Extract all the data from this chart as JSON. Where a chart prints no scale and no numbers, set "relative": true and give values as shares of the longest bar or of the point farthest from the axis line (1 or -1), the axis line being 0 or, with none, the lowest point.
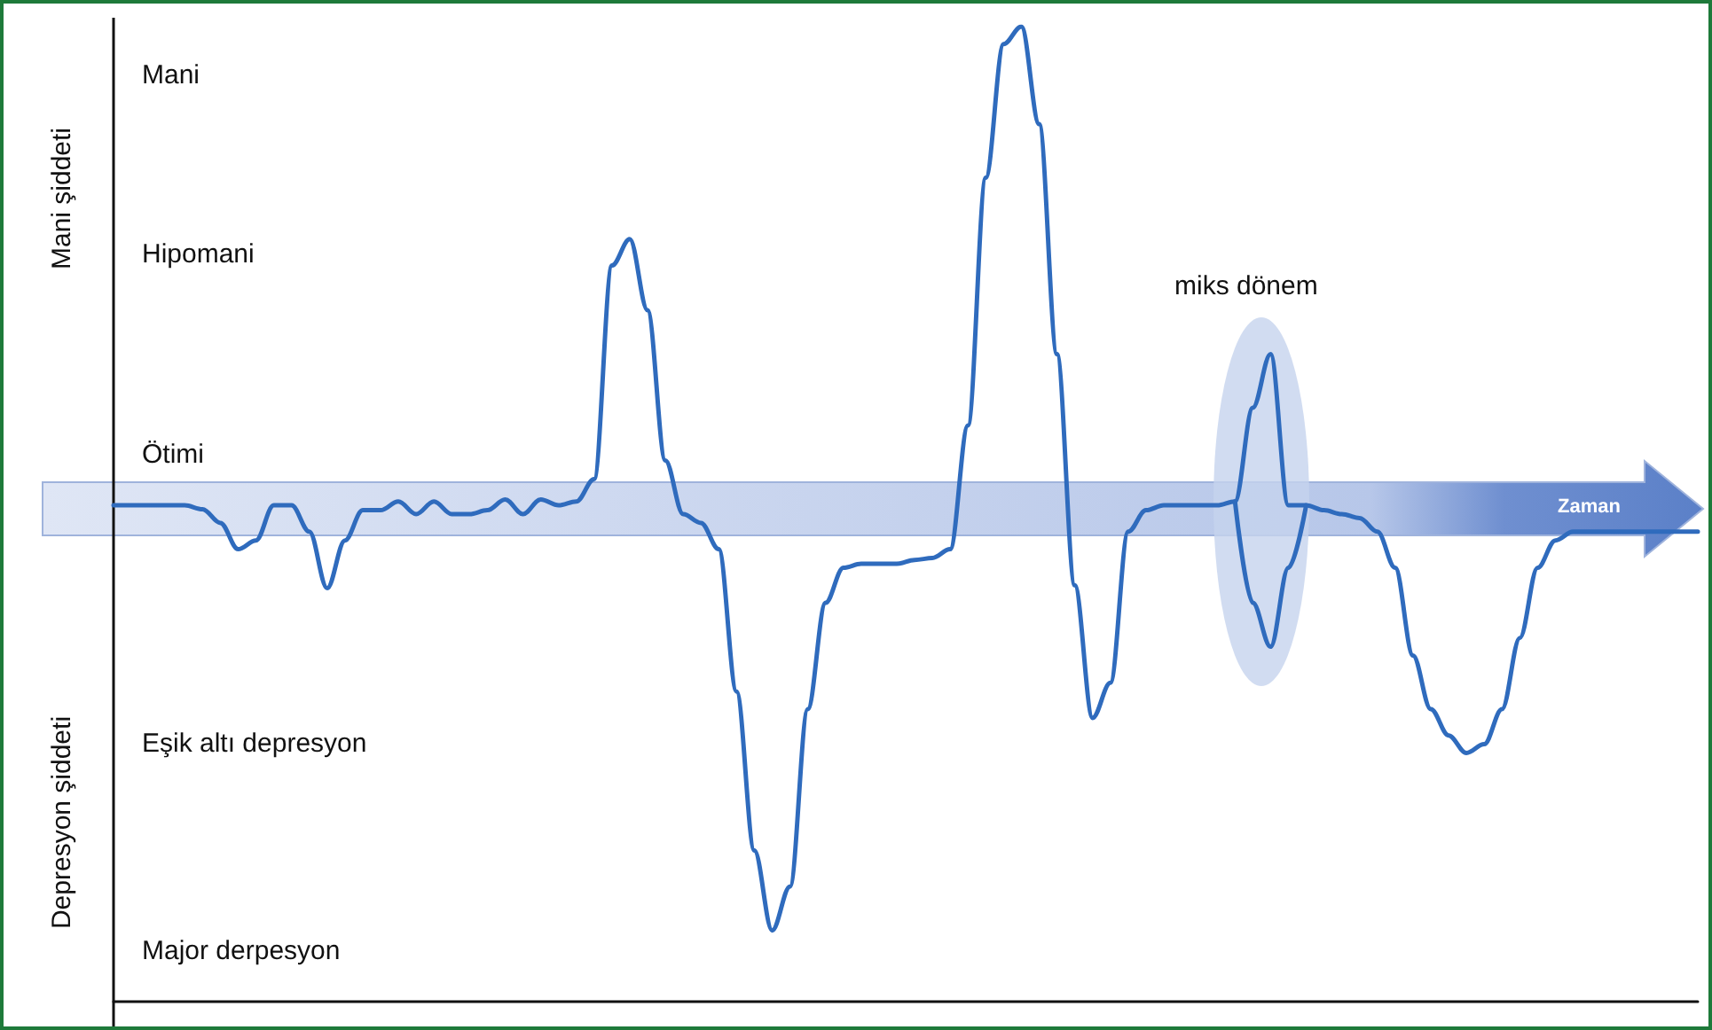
{
  "chart_data": {
    "type": "line",
    "relative": true,
    "marker": "none",
    "line_style": "solid",
    "ylabel": "Mani şiddeti",
    "annotations": [
      "Mani",
      "Hipomani",
      "Ötimi",
      "Eşik altı depresyon",
      "Major derpesyon",
      "Depresyon şiddeti",
      "miks dönem",
      "Zaman"
    ],
    "categories": [
      null,
      null,
      null,
      null,
      null,
      null,
      null,
      null,
      null,
      null,
      null,
      null,
      null,
      null,
      null,
      null,
      null,
      null,
      null,
      null,
      null,
      null,
      null,
      null,
      null,
      null,
      null,
      null,
      null,
      null,
      null,
      null,
      null,
      null,
      null,
      null,
      null,
      null,
      null,
      null,
      null,
      null,
      null,
      null,
      null,
      null,
      null,
      null,
      null,
      null,
      null,
      null,
      null,
      null,
      null,
      null,
      null,
      null,
      null,
      null,
      null,
      null,
      null,
      null,
      null,
      null,
      null,
      null,
      null,
      null,
      null,
      null,
      null,
      null,
      null,
      null,
      null,
      null,
      null,
      null,
      null,
      null,
      null,
      null,
      null,
      null,
      null,
      null,
      null,
      null
    ],
    "series": [
      {
        "color": "#2f6bbd",
        "values": [
          0.509,
          0.509,
          0.509,
          0.509,
          0.509,
          0.505,
          0.491,
          0.464,
          0.473,
          0.509,
          0.509,
          0.482,
          0.424,
          0.473,
          0.504,
          0.504,
          0.513,
          0.5,
          0.513,
          0.5,
          0.5,
          0.504,
          0.515,
          0.5,
          0.515,
          0.509,
          0.513,
          0.536,
          0.755,
          0.782,
          0.709,
          0.555,
          0.5,
          0.491,
          0.464,
          0.318,
          0.155,
          0.073,
          0.118,
          0.3,
          0.409,
          0.445,
          0.449,
          0.449,
          0.449,
          0.453,
          0.455,
          0.464,
          0.591,
          0.845,
          0.982,
          1,
          0.9,
          0.664,
          0.427,
          0.291,
          0.327,
          0.482,
          0.504,
          0.509,
          0.509,
          0.509,
          0.509,
          0.513,
          0.609,
          0.664,
          0.509,
          0.509,
          0.504,
          0.5,
          0.496,
          0.482,
          0.445,
          0.355,
          0.3,
          0.273,
          0.255,
          0.264,
          0.3,
          0.373,
          0.445,
          0.473,
          0.482,
          0.482,
          0.482,
          0.482,
          0.482,
          0.482,
          0.482,
          0.482
        ]
      },
      {
        "color": "#2f6bbd",
        "values": [
          null,
          null,
          null,
          null,
          null,
          null,
          null,
          null,
          null,
          null,
          null,
          null,
          null,
          null,
          null,
          null,
          null,
          null,
          null,
          null,
          null,
          null,
          null,
          null,
          null,
          null,
          null,
          null,
          null,
          null,
          null,
          null,
          null,
          null,
          null,
          null,
          null,
          null,
          null,
          null,
          null,
          null,
          null,
          null,
          null,
          null,
          null,
          null,
          null,
          null,
          null,
          null,
          null,
          null,
          null,
          null,
          null,
          null,
          null,
          null,
          null,
          null,
          null,
          0.513,
          0.409,
          0.364,
          0.445,
          0.509,
          null,
          null,
          null,
          null,
          null,
          null,
          null,
          null,
          null,
          null,
          null,
          null,
          null,
          null,
          null,
          null,
          null,
          null,
          null,
          null,
          null,
          null
        ]
      }
    ]
  }
}
